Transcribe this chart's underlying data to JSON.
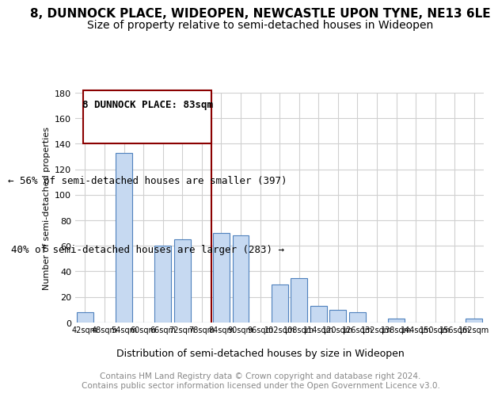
{
  "title": "8, DUNNOCK PLACE, WIDEOPEN, NEWCASTLE UPON TYNE, NE13 6LE",
  "subtitle": "Size of property relative to semi-detached houses in Wideopen",
  "xlabel": "Distribution of semi-detached houses by size in Wideopen",
  "ylabel": "Number of semi-detached properties",
  "footer": "Contains HM Land Registry data © Crown copyright and database right 2024.\nContains public sector information licensed under the Open Government Licence v3.0.",
  "annotation_title": "8 DUNNOCK PLACE: 83sqm",
  "annotation_line1": "← 56% of semi-detached houses are smaller (397)",
  "annotation_line2": "40% of semi-detached houses are larger (283) →",
  "marker_value": 83,
  "categories": [
    "42sqm",
    "48sqm",
    "54sqm",
    "60sqm",
    "66sqm",
    "72sqm",
    "78sqm",
    "84sqm",
    "90sqm",
    "96sqm",
    "102sqm",
    "108sqm",
    "114sqm",
    "120sqm",
    "126sqm",
    "132sqm",
    "138sqm",
    "144sqm",
    "150sqm",
    "156sqm",
    "162sqm"
  ],
  "values": [
    8,
    0,
    133,
    0,
    60,
    65,
    0,
    70,
    68,
    0,
    30,
    35,
    13,
    10,
    8,
    0,
    3,
    0,
    0,
    0,
    3
  ],
  "bar_color": "#c6d9f1",
  "bar_edge_color": "#4f81bd",
  "marker_color": "#8B0000",
  "ylim": [
    0,
    180
  ],
  "yticks": [
    0,
    20,
    40,
    60,
    80,
    100,
    120,
    140,
    160,
    180
  ],
  "title_fontsize": 11,
  "subtitle_fontsize": 10,
  "annotation_fontsize": 9,
  "footer_fontsize": 7.5,
  "background_color": "#ffffff",
  "grid_color": "#d0d0d0"
}
